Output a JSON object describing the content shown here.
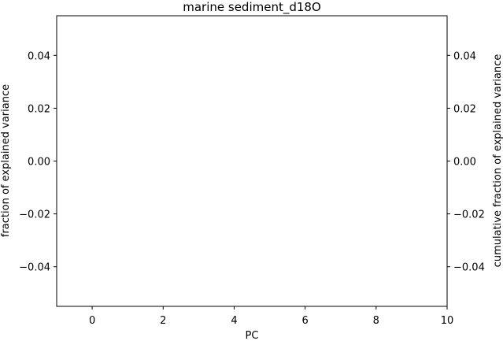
{
  "chart_data": {
    "type": "bar",
    "title": "marine sediment_d18O",
    "xlabel": "PC",
    "ylabel": "fraction of explained variance",
    "ylabel_right": "cumulative fraction of explained variance",
    "xlim": [
      -1,
      10
    ],
    "ylim": [
      -0.055,
      0.055
    ],
    "ylim_right": [
      -0.055,
      0.055
    ],
    "x_ticks": [
      0,
      2,
      4,
      6,
      8,
      10
    ],
    "x_tick_labels": [
      "0",
      "2",
      "4",
      "6",
      "8",
      "10"
    ],
    "y_ticks": [
      -0.04,
      -0.02,
      0.0,
      0.02,
      0.04
    ],
    "y_tick_labels": [
      "−0.04",
      "−0.02",
      "0.00",
      "0.02",
      "0.04"
    ],
    "y_ticks_right": [
      -0.04,
      -0.02,
      0.0,
      0.02,
      0.04
    ],
    "y_tick_labels_right": [
      "−0.04",
      "−0.02",
      "0.00",
      "0.02",
      "0.04"
    ],
    "grid": false,
    "series": []
  }
}
